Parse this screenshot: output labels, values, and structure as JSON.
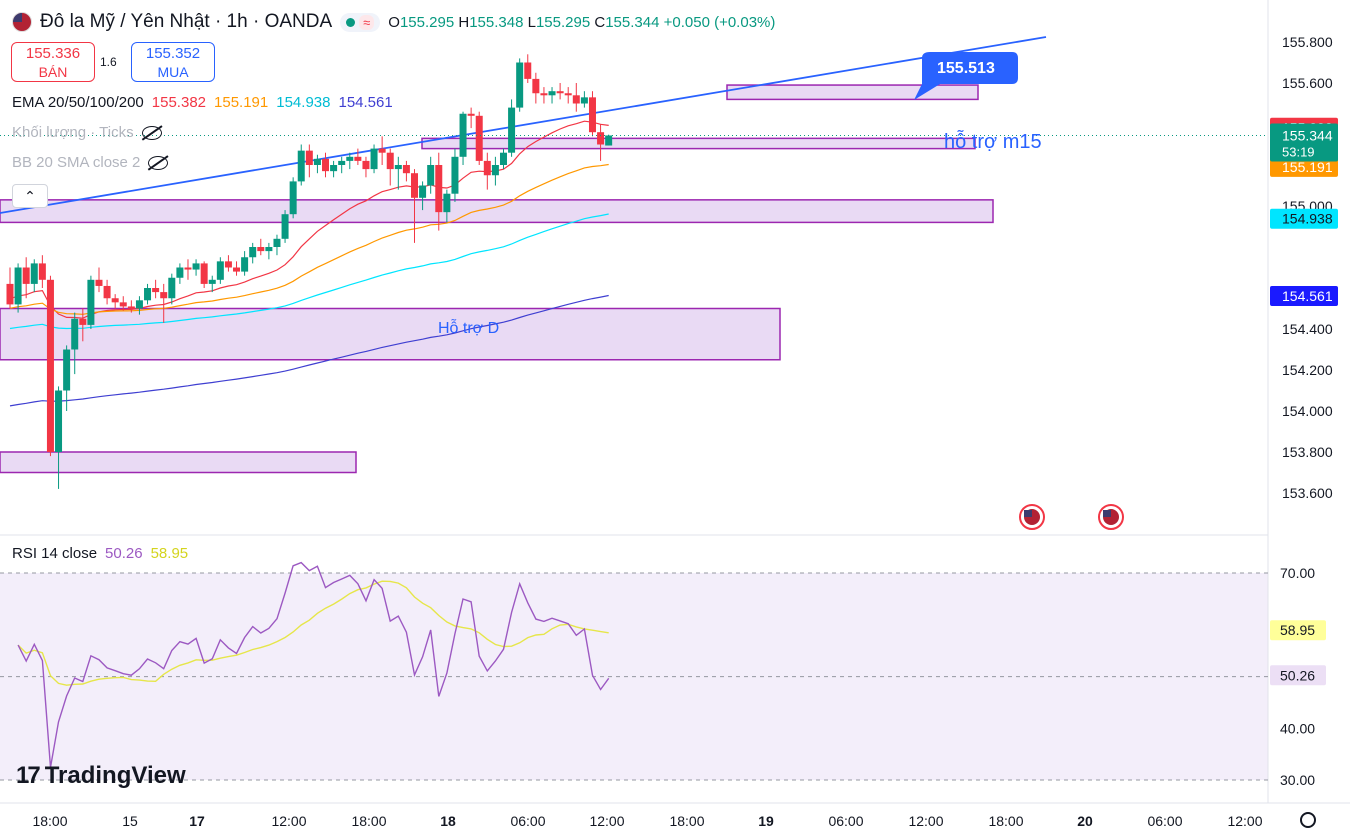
{
  "header": {
    "symbol_title": "Đô la Mỹ / Yên Nhật · 1h · OANDA",
    "flag_icon": "us-flag-icon",
    "status_icon": "market-open-dot-icon",
    "wave_icon": "approx-wave-icon",
    "ohlc": {
      "o_label": "O",
      "o": "155.295",
      "h_label": "H",
      "h": "155.348",
      "l_label": "L",
      "l": "155.295",
      "c_label": "C",
      "c": "155.344",
      "change": "+0.050 (+0.03%)"
    }
  },
  "trade": {
    "sell_price": "155.336",
    "sell_label": "BÁN",
    "spread": "1.6",
    "buy_price": "155.352",
    "buy_label": "MUA"
  },
  "indicators": {
    "ema_label": "EMA 20/50/100/200",
    "ema_values": [
      "155.382",
      "155.191",
      "154.938",
      "154.561"
    ],
    "volume_label": "Khối lượng · Ticks",
    "bb_label": "BB 20 SMA close 2",
    "rsi_label": "RSI 14 close",
    "rsi_values": [
      "50.26",
      "58.95"
    ]
  },
  "colors": {
    "up": "#089981",
    "down": "#f23645",
    "ema20": "#f23645",
    "ema50": "#ff9800",
    "ema100": "#00e5ff",
    "ema200": "#3f3fd1",
    "zone_fill": "#e1cdf0",
    "zone_border": "#9c27b0",
    "trendline": "#2962ff",
    "rsi": "#9c59c2",
    "rsi_ma": "#e6e64a"
  },
  "chart_data": {
    "type": "candlestick",
    "timeframe": "1h",
    "y_ticks": [
      "155.800",
      "155.600",
      "155.000",
      "154.400",
      "154.200",
      "154.000",
      "153.800",
      "153.600"
    ],
    "x_ticks": [
      "18:00",
      "15",
      "17",
      "12:00",
      "18:00",
      "18",
      "06:00",
      "12:00",
      "18:00",
      "19",
      "06:00",
      "12:00",
      "18:00",
      "20",
      "06:00",
      "12:00"
    ],
    "ylim": [
      153.48,
      155.92
    ],
    "last_price": "155.344",
    "countdown": "53:19",
    "price_tags": [
      {
        "value": "155.382",
        "color": "#f23645"
      },
      {
        "value": "155.191",
        "color": "#ff9800"
      },
      {
        "value": "154.938",
        "color": "#00e5ff"
      },
      {
        "value": "154.561",
        "color": "#1a1aff"
      }
    ],
    "candles_ohlc": [
      [
        154.62,
        154.7,
        154.5,
        154.52
      ],
      [
        154.52,
        154.72,
        154.48,
        154.7
      ],
      [
        154.7,
        154.75,
        154.55,
        154.62
      ],
      [
        154.62,
        154.74,
        154.58,
        154.72
      ],
      [
        154.72,
        154.76,
        154.6,
        154.64
      ],
      [
        154.64,
        154.66,
        153.78,
        153.8
      ],
      [
        153.8,
        154.12,
        153.62,
        154.1
      ],
      [
        154.1,
        154.32,
        154.0,
        154.3
      ],
      [
        154.3,
        154.48,
        154.18,
        154.45
      ],
      [
        154.45,
        154.5,
        154.34,
        154.42
      ],
      [
        154.42,
        154.66,
        154.4,
        154.64
      ],
      [
        154.64,
        154.7,
        154.58,
        154.61
      ],
      [
        154.61,
        154.64,
        154.52,
        154.55
      ],
      [
        154.55,
        154.57,
        154.5,
        154.53
      ],
      [
        154.53,
        154.56,
        154.49,
        154.51
      ],
      [
        154.51,
        154.54,
        154.48,
        154.5
      ],
      [
        154.5,
        154.56,
        154.47,
        154.54
      ],
      [
        154.54,
        154.62,
        154.52,
        154.6
      ],
      [
        154.6,
        154.64,
        154.55,
        154.58
      ],
      [
        154.58,
        154.62,
        154.43,
        154.55
      ],
      [
        154.55,
        154.67,
        154.52,
        154.65
      ],
      [
        154.65,
        154.72,
        154.62,
        154.7
      ],
      [
        154.7,
        154.74,
        154.64,
        154.69
      ],
      [
        154.69,
        154.74,
        154.66,
        154.72
      ],
      [
        154.72,
        154.73,
        154.6,
        154.62
      ],
      [
        154.62,
        154.66,
        154.58,
        154.64
      ],
      [
        154.64,
        154.75,
        154.62,
        154.73
      ],
      [
        154.73,
        154.76,
        154.68,
        154.7
      ],
      [
        154.7,
        154.73,
        154.66,
        154.68
      ],
      [
        154.68,
        154.78,
        154.66,
        154.75
      ],
      [
        154.75,
        154.82,
        154.72,
        154.8
      ],
      [
        154.8,
        154.84,
        154.76,
        154.78
      ],
      [
        154.78,
        154.82,
        154.74,
        154.8
      ],
      [
        154.8,
        154.86,
        154.76,
        154.84
      ],
      [
        154.84,
        154.98,
        154.82,
        154.96
      ],
      [
        154.96,
        155.14,
        154.94,
        155.12
      ],
      [
        155.12,
        155.3,
        155.1,
        155.27
      ],
      [
        155.27,
        155.3,
        155.14,
        155.2
      ],
      [
        155.2,
        155.25,
        155.16,
        155.23
      ],
      [
        155.23,
        155.26,
        155.14,
        155.17
      ],
      [
        155.17,
        155.22,
        155.14,
        155.2
      ],
      [
        155.2,
        155.24,
        155.16,
        155.22
      ],
      [
        155.22,
        155.26,
        155.18,
        155.24
      ],
      [
        155.24,
        155.28,
        155.2,
        155.22
      ],
      [
        155.22,
        155.24,
        155.14,
        155.18
      ],
      [
        155.18,
        155.3,
        155.16,
        155.28
      ],
      [
        155.28,
        155.34,
        155.2,
        155.26
      ],
      [
        155.26,
        155.28,
        155.1,
        155.18
      ],
      [
        155.18,
        155.24,
        155.08,
        155.2
      ],
      [
        155.2,
        155.22,
        155.12,
        155.16
      ],
      [
        155.16,
        155.18,
        154.82,
        155.04
      ],
      [
        155.04,
        155.12,
        154.98,
        155.1
      ],
      [
        155.1,
        155.24,
        155.06,
        155.2
      ],
      [
        155.2,
        155.26,
        154.88,
        154.97
      ],
      [
        154.97,
        155.08,
        154.92,
        155.06
      ],
      [
        155.06,
        155.28,
        155.02,
        155.24
      ],
      [
        155.24,
        155.46,
        155.2,
        155.45
      ],
      [
        155.45,
        155.48,
        155.38,
        155.44
      ],
      [
        155.44,
        155.46,
        155.2,
        155.22
      ],
      [
        155.22,
        155.26,
        155.08,
        155.15
      ],
      [
        155.15,
        155.24,
        155.1,
        155.2
      ],
      [
        155.2,
        155.28,
        155.18,
        155.26
      ],
      [
        155.26,
        155.52,
        155.24,
        155.48
      ],
      [
        155.48,
        155.72,
        155.46,
        155.7
      ],
      [
        155.7,
        155.74,
        155.6,
        155.62
      ],
      [
        155.62,
        155.65,
        155.5,
        155.55
      ],
      [
        155.55,
        155.58,
        155.5,
        155.54
      ],
      [
        155.54,
        155.58,
        155.5,
        155.56
      ],
      [
        155.56,
        155.6,
        155.52,
        155.55
      ],
      [
        155.55,
        155.58,
        155.5,
        155.54
      ],
      [
        155.54,
        155.6,
        155.46,
        155.5
      ],
      [
        155.5,
        155.56,
        155.48,
        155.53
      ],
      [
        155.53,
        155.56,
        155.34,
        155.36
      ],
      [
        155.36,
        155.4,
        155.22,
        155.3
      ],
      [
        155.295,
        155.348,
        155.295,
        155.344
      ]
    ],
    "rsi_ylim": [
      28,
      72
    ],
    "rsi_ticks": [
      "70.00",
      "58.95",
      "50.26",
      "40.00",
      "30.00"
    ],
    "rsi_dashed": [
      70,
      50
    ]
  },
  "annotations": {
    "support_d": "Hỗ trợ D",
    "support_m15": "hỗ trợ m15",
    "callout_price": "155.513"
  },
  "branding": {
    "logo_text": "TradingView",
    "logo_mark": "17"
  }
}
